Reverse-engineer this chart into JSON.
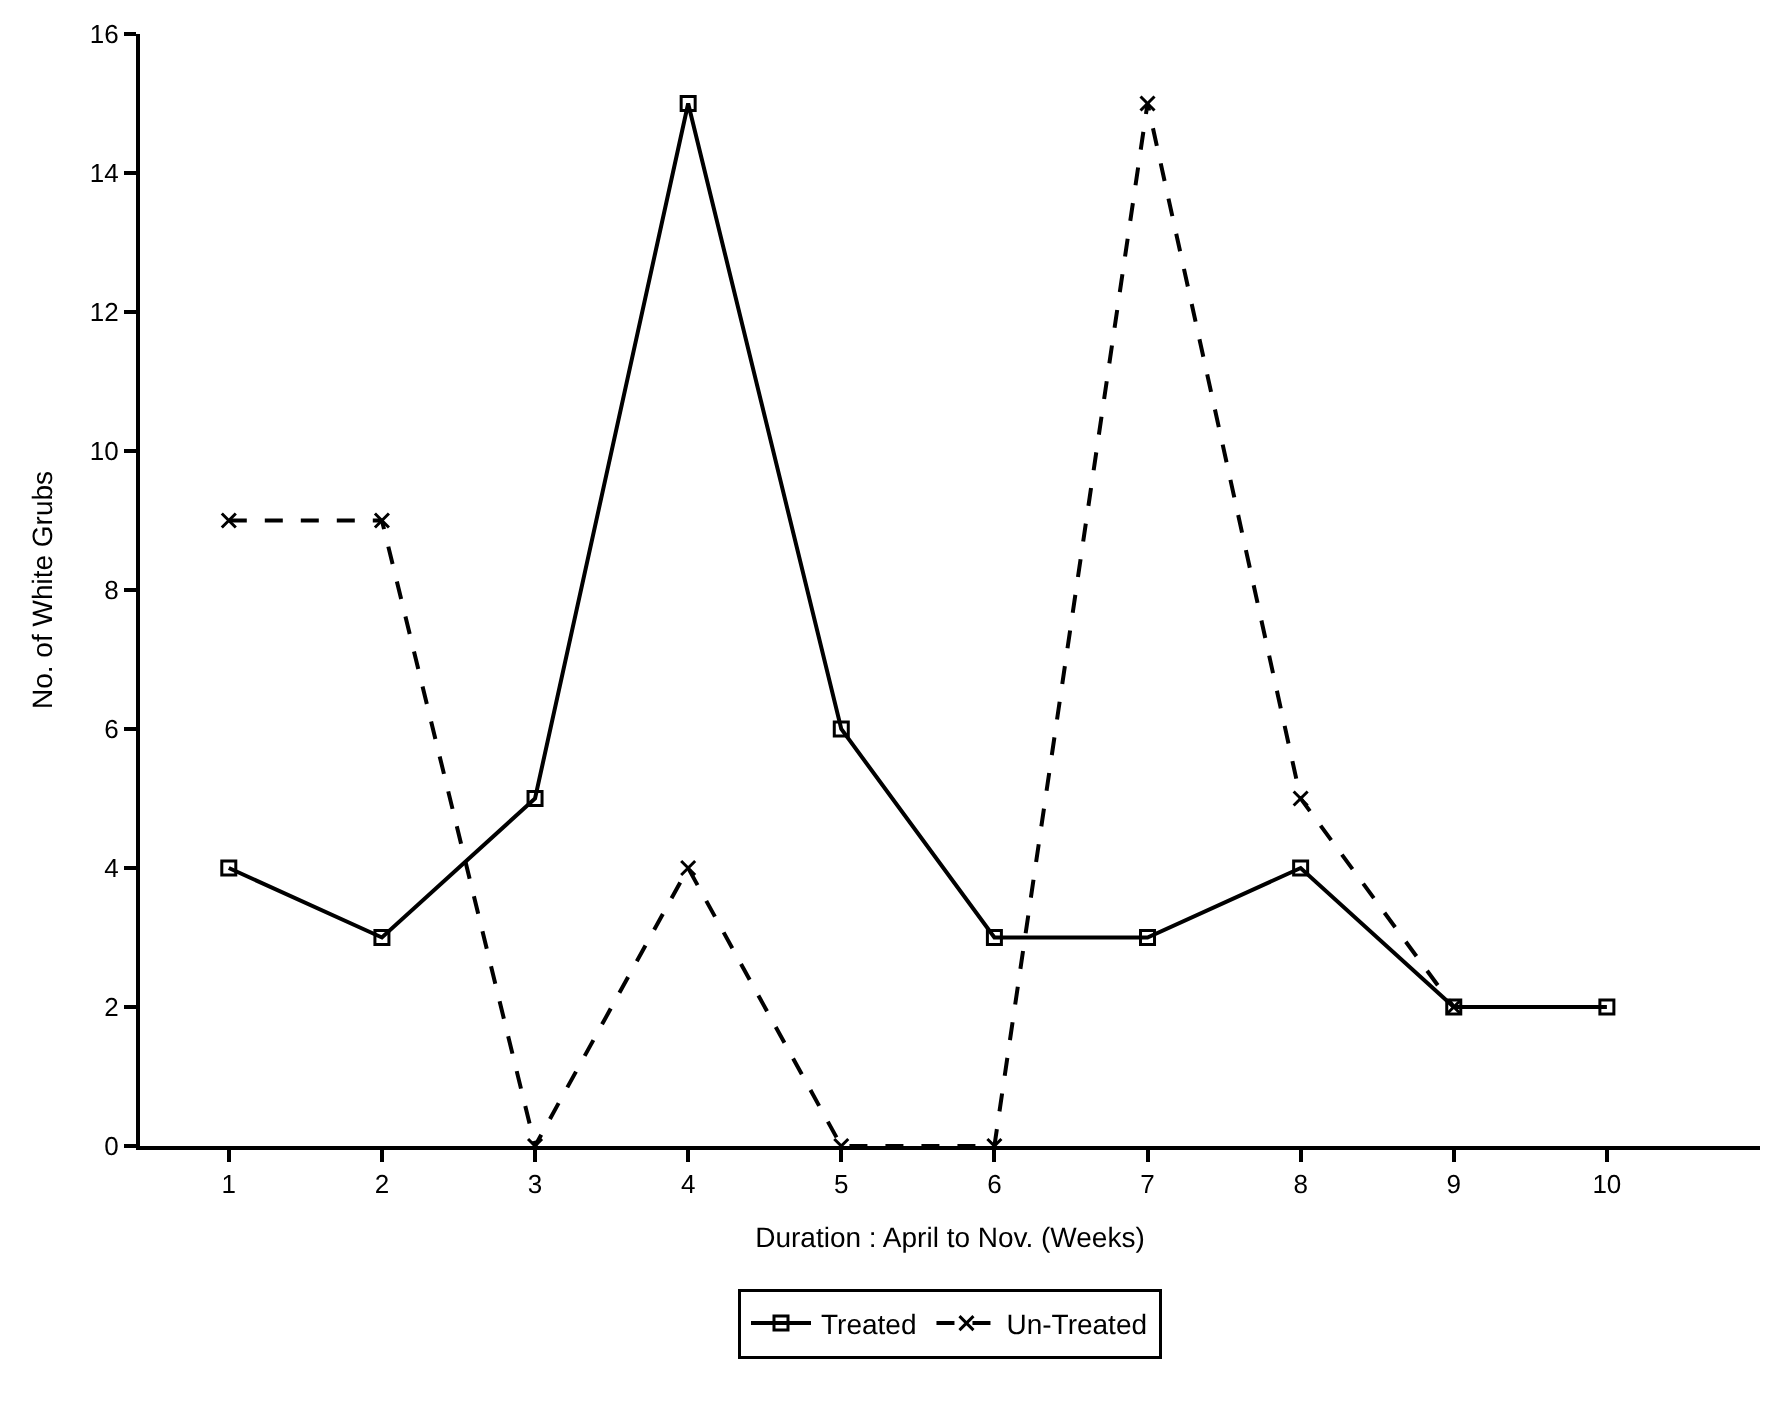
{
  "chart_data": {
    "type": "line",
    "xlabel": "Duration : April to Nov. (Weeks)",
    "ylabel": "No. of White Grubs",
    "x": [
      1,
      2,
      3,
      4,
      5,
      6,
      7,
      8,
      9,
      10
    ],
    "series": [
      {
        "name": "Treated",
        "color": "#000000",
        "values": [
          4,
          3,
          5,
          15,
          6,
          3,
          3,
          4,
          2,
          2
        ],
        "marker": "square",
        "line_style": "solid"
      },
      {
        "name": "Un-Treated",
        "color": "#000000",
        "values": [
          9,
          9,
          0,
          4,
          0,
          0,
          15,
          5,
          2,
          null
        ],
        "marker": "cross",
        "line_style": "dashed"
      }
    ],
    "xlim": [
      0.42,
      11
    ],
    "xticks": [
      1,
      2,
      3,
      4,
      5,
      6,
      7,
      8,
      9,
      10
    ],
    "ylim": [
      0,
      16
    ],
    "yticks": [
      0,
      2,
      4,
      6,
      8,
      10,
      12,
      14,
      16
    ],
    "legend": "bottom"
  }
}
